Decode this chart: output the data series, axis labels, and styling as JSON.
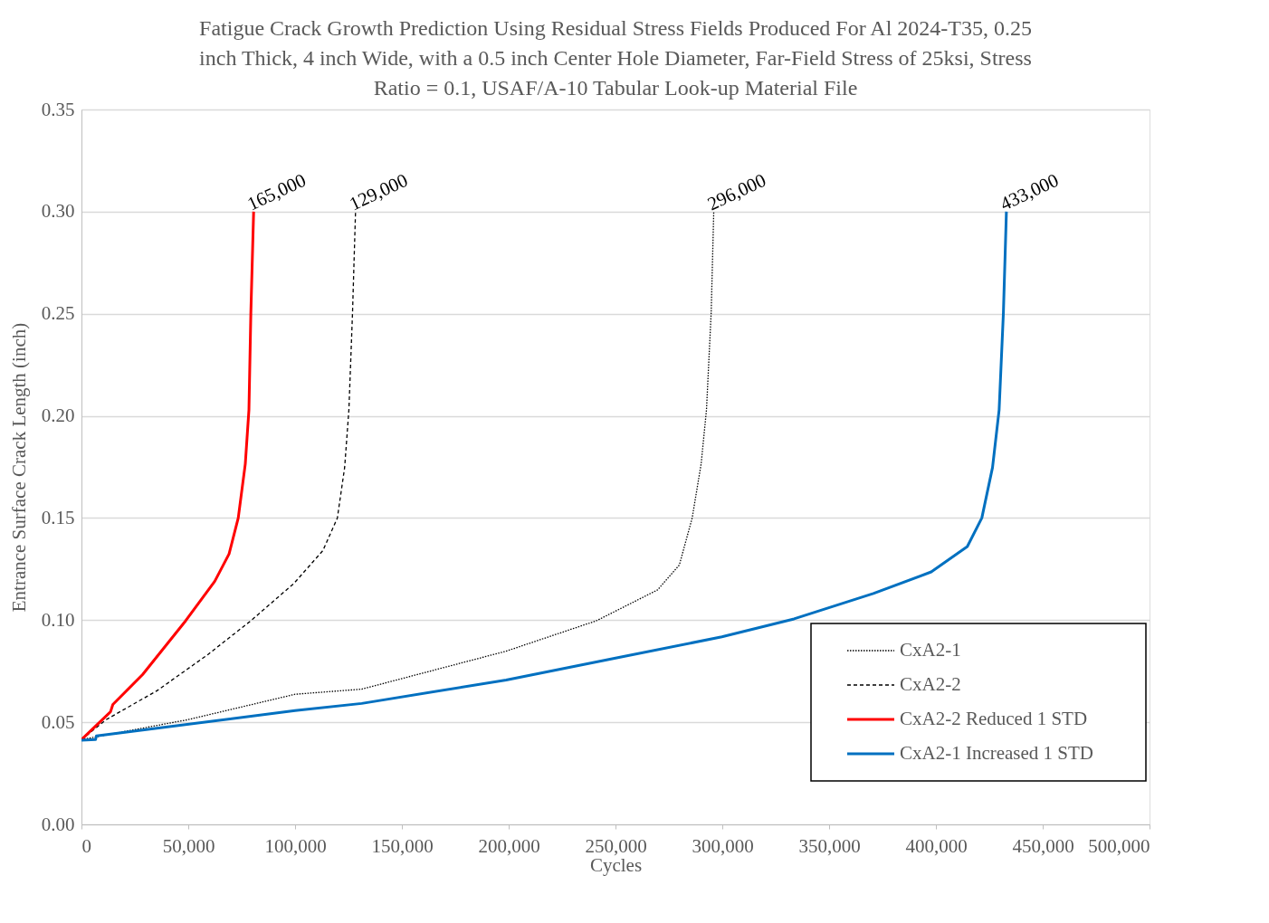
{
  "chart_data": {
    "type": "line",
    "title": [
      "Fatigue Crack Growth Prediction Using Residual Stress Fields Produced For Al 2024-T35, 0.25",
      "inch Thick, 4 inch Wide, with a 0.5 inch Center Hole Diameter, Far-Field Stress of 25ksi, Stress",
      "Ratio = 0.1, USAF/A-10 Tabular Look-up Material File"
    ],
    "xlabel": "Cycles",
    "ylabel": "Entrance Surface Crack Length (inch)",
    "xlim": [
      0,
      500000
    ],
    "xticks": [
      0,
      {
        "value": 50000,
        "label": "50,000"
      },
      {
        "value": 100000,
        "label": "100,000"
      },
      {
        "value": 150000,
        "label": "150,000"
      },
      {
        "value": 200000,
        "label": "200,000"
      },
      {
        "value": 250000,
        "label": "250,000"
      },
      {
        "value": 300000,
        "label": "300,000"
      },
      {
        "value": 350000,
        "label": "350,000"
      },
      {
        "value": 400000,
        "label": "400,000"
      },
      {
        "value": 450000,
        "label": "450,000"
      },
      {
        "value": 500000,
        "label": "500,000"
      }
    ],
    "ylim": [
      0,
      0.35
    ],
    "yticks": [
      {
        "value": 0,
        "label": "0.00"
      },
      0.05,
      {
        "value": 0.1,
        "label": "0.10"
      },
      0.15,
      {
        "value": 0.2,
        "label": "0.20"
      },
      0.25,
      {
        "value": 0.3,
        "label": "0.30"
      },
      0.35
    ],
    "grid": "y",
    "legend": "bottom right",
    "marker": "none",
    "series": [
      {
        "name": "CxA2-1",
        "color": "#000000",
        "line_style": "dotted",
        "x": [
          0,
          50000,
          100000,
          131200,
          198800,
          241100,
          269700,
          279900,
          285900,
          290100,
          292600,
          294800,
          296000
        ],
        "values": [
          0.0415,
          0.0513,
          0.0637,
          0.0662,
          0.0848,
          0.0997,
          0.1148,
          0.127,
          0.15,
          0.1765,
          0.203,
          0.2506,
          0.3
        ]
      },
      {
        "name": "CxA2-2",
        "color": "#000000",
        "line_style": "dashed",
        "x": [
          0,
          11600,
          35300,
          59000,
          79300,
          99500,
          113000,
          119800,
          123200,
          125200,
          126900,
          128300
        ],
        "values": [
          0.0415,
          0.0513,
          0.0654,
          0.083,
          0.0997,
          0.118,
          0.134,
          0.15,
          0.1747,
          0.203,
          0.2506,
          0.3
        ]
      },
      {
        "name": "CxA2-2 Reduced 1 STD",
        "color": "#ff0000",
        "line_style": "solid",
        "x": [
          0,
          13600,
          14700,
          28600,
          48800,
          62400,
          69100,
          73400,
          76700,
          78400,
          79300,
          80600
        ],
        "values": [
          0.0415,
          0.0551,
          0.0587,
          0.0733,
          0.0997,
          0.119,
          0.1324,
          0.15,
          0.1765,
          0.203,
          0.2506,
          0.3
        ]
      },
      {
        "name": "CxA2-1 Increased 1 STD",
        "color": "#0070c0",
        "line_style": "solid",
        "x": [
          0,
          6600,
          7000,
          100000,
          131200,
          198800,
          249500,
          299800,
          333600,
          370700,
          397800,
          414700,
          421500,
          426500,
          429600,
          431600,
          433000
        ],
        "values": [
          0.0412,
          0.0415,
          0.0433,
          0.0557,
          0.0592,
          0.0707,
          0.0813,
          0.0918,
          0.1006,
          0.113,
          0.1236,
          0.136,
          0.15,
          0.1747,
          0.203,
          0.2506,
          0.3
        ]
      }
    ],
    "annotations": [
      {
        "text": "165,000",
        "x": 80600,
        "y": 0.3
      },
      {
        "text": "129,000",
        "x": 128300,
        "y": 0.3
      },
      {
        "text": "296,000",
        "x": 296000,
        "y": 0.3
      },
      {
        "text": "433,000",
        "x": 433000,
        "y": 0.3
      }
    ]
  }
}
